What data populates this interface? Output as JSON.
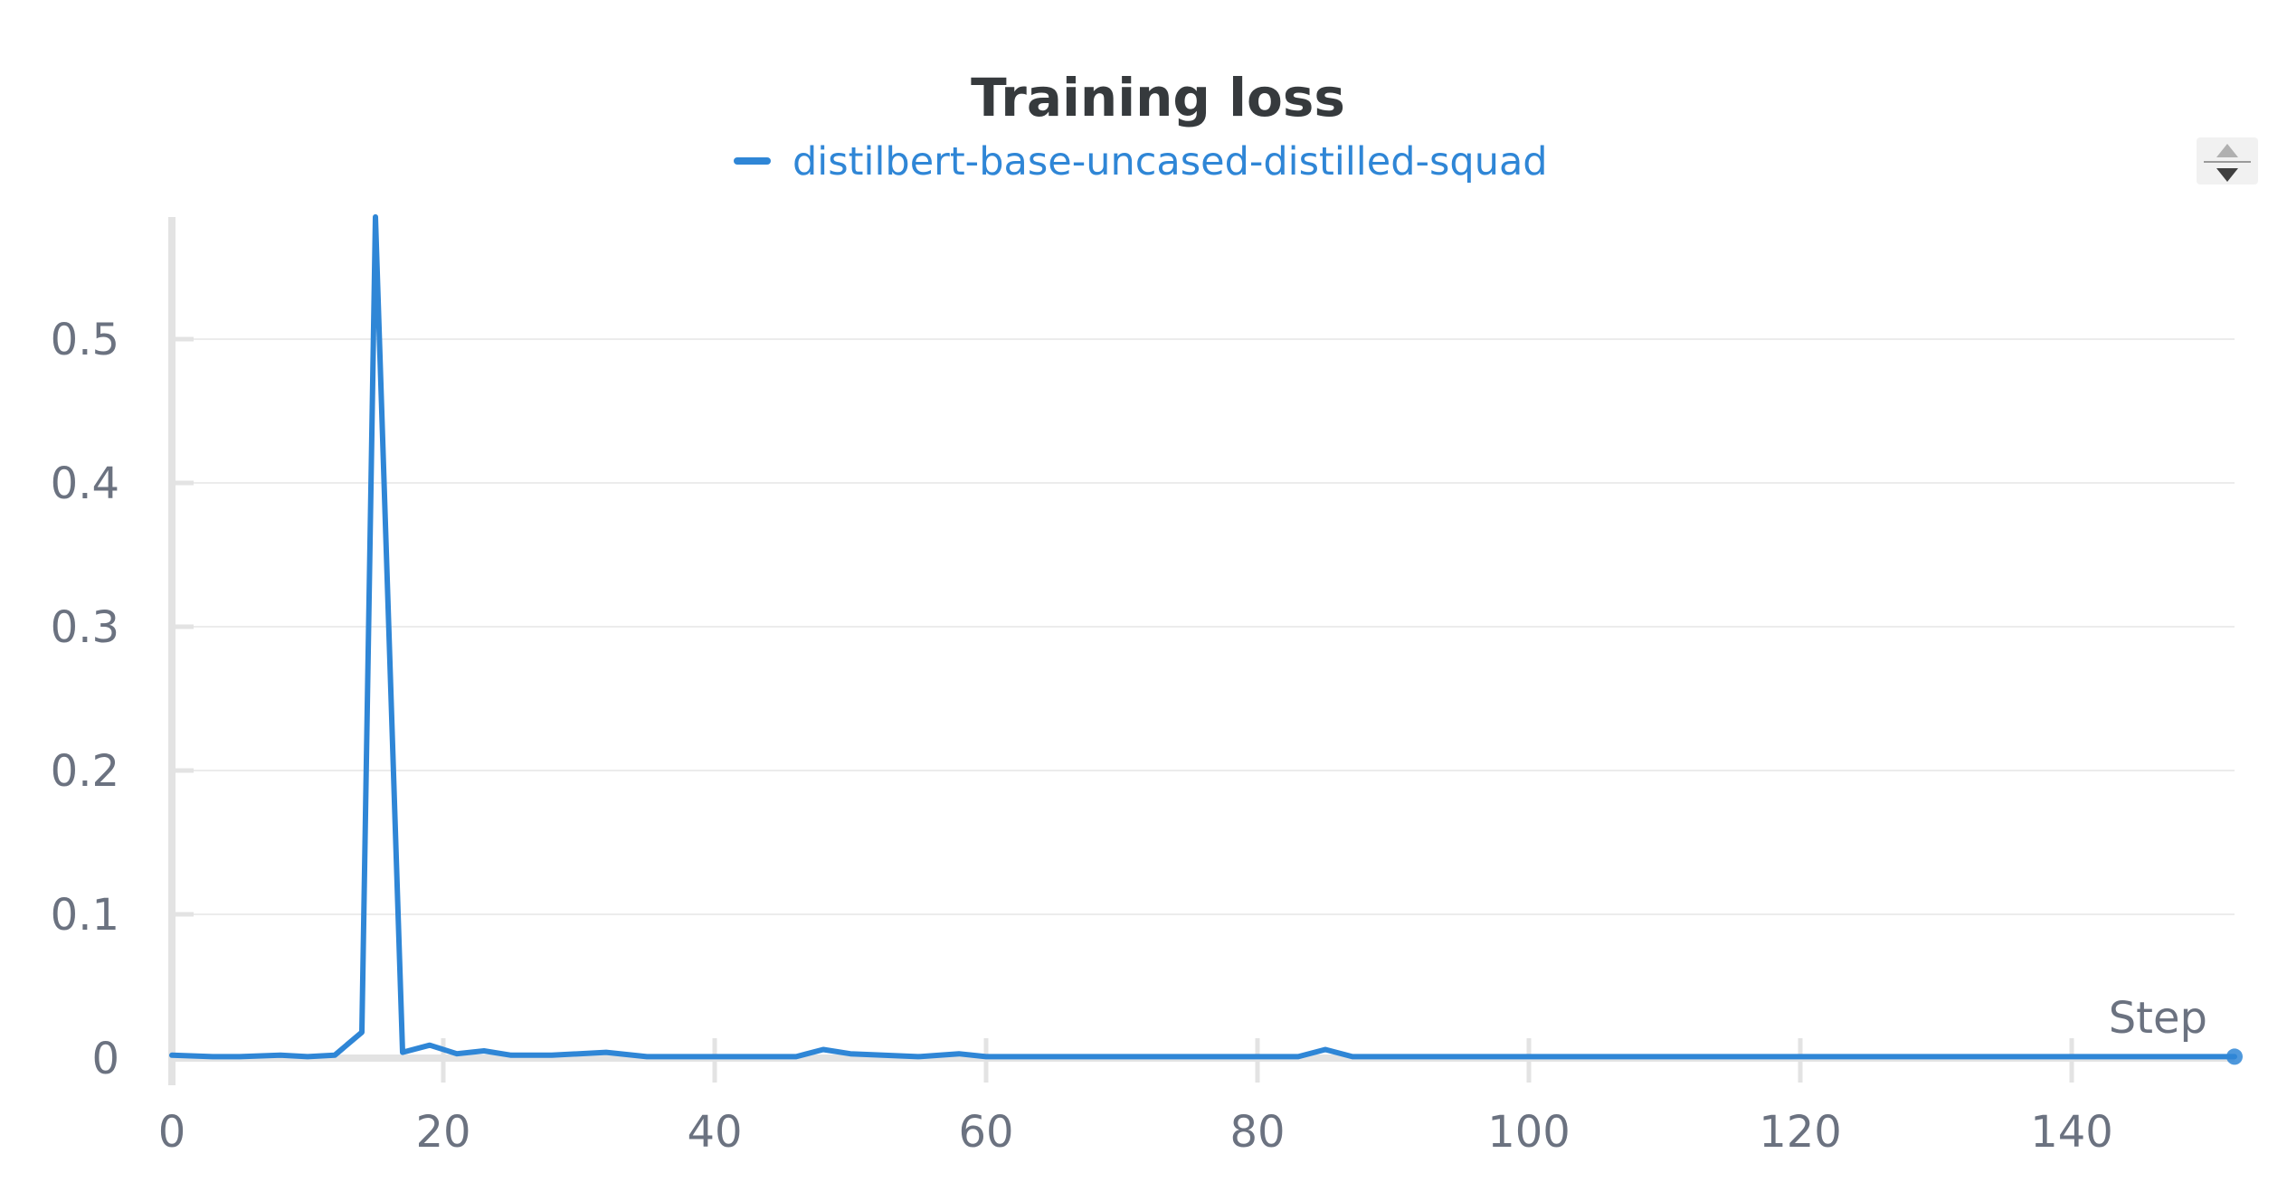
{
  "chart_data": {
    "type": "line",
    "title": "Training loss",
    "xlabel": "Step",
    "ylabel": "",
    "xlim": [
      0,
      152
    ],
    "ylim": [
      0,
      0.6
    ],
    "grid": true,
    "legend": "top-center",
    "x_ticks": [
      "0",
      "20",
      "40",
      "60",
      "80",
      "100",
      "120",
      "140"
    ],
    "y_ticks": [
      "0",
      "0.1",
      "0.2",
      "0.3",
      "0.4",
      "0.5"
    ],
    "series": [
      {
        "name": "distilbert-base-uncased-distilled-squad",
        "color": "#2f86d6",
        "x": [
          0,
          3,
          5,
          8,
          10,
          12,
          14,
          15,
          17,
          19,
          21,
          23,
          25,
          28,
          32,
          35,
          40,
          46,
          48,
          50,
          55,
          58,
          60,
          70,
          80,
          83,
          85,
          87,
          90,
          100,
          110,
          120,
          130,
          140,
          150,
          152
        ],
        "y": [
          0.002,
          0.001,
          0.001,
          0.002,
          0.001,
          0.002,
          0.018,
          0.585,
          0.004,
          0.009,
          0.003,
          0.005,
          0.002,
          0.002,
          0.004,
          0.001,
          0.001,
          0.001,
          0.006,
          0.003,
          0.001,
          0.003,
          0.001,
          0.001,
          0.001,
          0.001,
          0.006,
          0.001,
          0.001,
          0.001,
          0.001,
          0.001,
          0.001,
          0.001,
          0.001,
          0.001
        ]
      }
    ]
  },
  "controls": {
    "sort_icon": "sort-arrows-icon"
  }
}
